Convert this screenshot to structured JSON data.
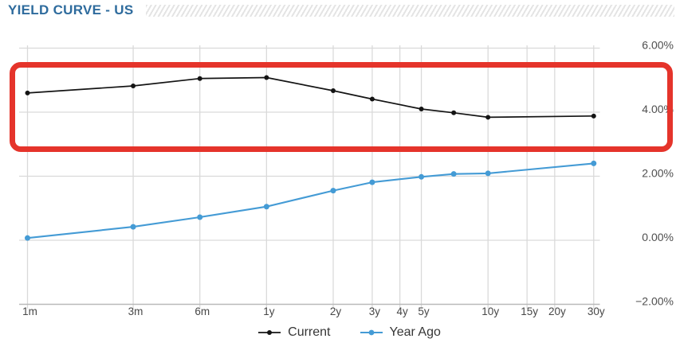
{
  "header": {
    "title": "YIELD CURVE - US"
  },
  "colors": {
    "title": "#2e6b9d",
    "current_line": "#141414",
    "year_ago_line": "#449bd5",
    "highlight_box": "#e5342b",
    "gridline": "#d9d9d9",
    "axis_line": "#b9b9b9",
    "tick_label": "#4a4a4a",
    "legend_text": "#363636"
  },
  "chart_data": {
    "type": "line",
    "title": "YIELD CURVE - US",
    "x_scale": "logarithmic-maturity",
    "grid": true,
    "legend_position": "bottom",
    "y_axis_side": "right",
    "ylim": [
      -2,
      6
    ],
    "x_ticks": [
      {
        "label": "1m",
        "months": 1
      },
      {
        "label": "3m",
        "months": 3
      },
      {
        "label": "6m",
        "months": 6
      },
      {
        "label": "1y",
        "months": 12
      },
      {
        "label": "2y",
        "months": 24
      },
      {
        "label": "3y",
        "months": 36
      },
      {
        "label": "4y",
        "months": 48
      },
      {
        "label": "5y",
        "months": 60
      },
      {
        "label": "10y",
        "months": 120
      },
      {
        "label": "15y",
        "months": 180
      },
      {
        "label": "20y",
        "months": 240
      },
      {
        "label": "30y",
        "months": 360
      }
    ],
    "y_ticks": [
      {
        "label": "6.00%",
        "value": 6
      },
      {
        "label": "4.00%",
        "value": 4
      },
      {
        "label": "2.00%",
        "value": 2
      },
      {
        "label": "0.00%",
        "value": 0
      },
      {
        "label": "−2.00%",
        "value": -2
      }
    ],
    "series": [
      {
        "name": "Current",
        "color": "#141414",
        "points": [
          {
            "maturity": "1m",
            "months": 1,
            "value": 4.6
          },
          {
            "maturity": "3m",
            "months": 3,
            "value": 4.82
          },
          {
            "maturity": "6m",
            "months": 6,
            "value": 5.05
          },
          {
            "maturity": "1y",
            "months": 12,
            "value": 5.08
          },
          {
            "maturity": "2y",
            "months": 24,
            "value": 4.67
          },
          {
            "maturity": "3y",
            "months": 36,
            "value": 4.41
          },
          {
            "maturity": "5y",
            "months": 60,
            "value": 4.1
          },
          {
            "maturity": "7y",
            "months": 84,
            "value": 3.98
          },
          {
            "maturity": "10y",
            "months": 120,
            "value": 3.84
          },
          {
            "maturity": "30y",
            "months": 360,
            "value": 3.88
          }
        ]
      },
      {
        "name": "Year Ago",
        "color": "#449bd5",
        "points": [
          {
            "maturity": "1m",
            "months": 1,
            "value": 0.07
          },
          {
            "maturity": "3m",
            "months": 3,
            "value": 0.42
          },
          {
            "maturity": "6m",
            "months": 6,
            "value": 0.72
          },
          {
            "maturity": "1y",
            "months": 12,
            "value": 1.05
          },
          {
            "maturity": "2y",
            "months": 24,
            "value": 1.55
          },
          {
            "maturity": "3y",
            "months": 36,
            "value": 1.81
          },
          {
            "maturity": "5y",
            "months": 60,
            "value": 1.98
          },
          {
            "maturity": "7y",
            "months": 84,
            "value": 2.07
          },
          {
            "maturity": "10y",
            "months": 120,
            "value": 2.09
          },
          {
            "maturity": "30y",
            "months": 360,
            "value": 2.4
          }
        ]
      }
    ],
    "annotation": {
      "type": "highlight-box",
      "color": "#e5342b",
      "region": "current-curve"
    }
  }
}
